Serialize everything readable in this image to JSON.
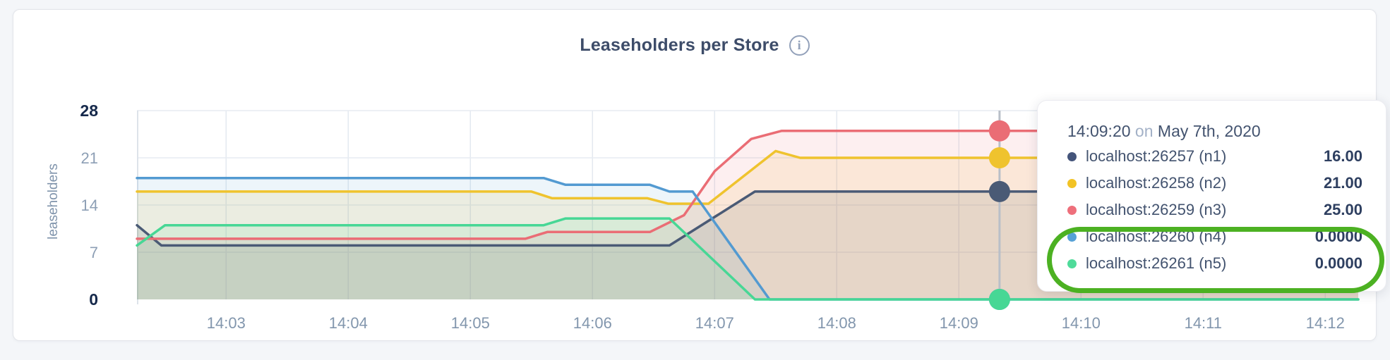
{
  "header": {
    "title": "Leaseholders per Store",
    "info_icon_glyph": "i"
  },
  "tooltip": {
    "time": "14:09:20",
    "on_word": " on ",
    "date": "May 7th, 2020",
    "rows": [
      {
        "name": "localhost:26257 (n1)",
        "value": "16.00",
        "color": "#4454722",
        "dot_color": "#44547a"
      },
      {
        "name": "localhost:26258 (n2)",
        "value": "21.00",
        "color": "#f2c325",
        "dot_color": "#f2c325"
      },
      {
        "name": "localhost:26259 (n3)",
        "value": "25.00",
        "color": "#ee6f7b",
        "dot_color": "#ee6f7b"
      },
      {
        "name": "localhost:26260 (n4)",
        "value": "0.0000",
        "color": "#56a1d6",
        "dot_color": "#56a1d6"
      },
      {
        "name": "localhost:26261 (n5)",
        "value": "0.0000",
        "color": "#4fdb9a",
        "dot_color": "#4fdb9a"
      }
    ],
    "annotation_color": "#4cb122",
    "annotation_note": "green ring highlights rows n4 and n5"
  },
  "chart_data": {
    "type": "area",
    "title": "Leaseholders per Store",
    "xlabel": "",
    "ylabel": "leaseholders",
    "x_unit": "minutes after 14:00 on May 7th, 2020",
    "x_range": [
      2.27,
      12.27
    ],
    "y_range": [
      0,
      28
    ],
    "grid": true,
    "legend_position": "tooltip",
    "x_ticks": [
      {
        "t": 3,
        "label": "14:03"
      },
      {
        "t": 4,
        "label": "14:04"
      },
      {
        "t": 5,
        "label": "14:05"
      },
      {
        "t": 6,
        "label": "14:06"
      },
      {
        "t": 7,
        "label": "14:07"
      },
      {
        "t": 8,
        "label": "14:08"
      },
      {
        "t": 9,
        "label": "14:09"
      },
      {
        "t": 10,
        "label": "14:10"
      },
      {
        "t": 11,
        "label": "14:11"
      },
      {
        "t": 12,
        "label": "14:12"
      }
    ],
    "y_ticks": [
      {
        "v": 0,
        "label": "0",
        "emph": true
      },
      {
        "v": 7,
        "label": "7",
        "emph": false
      },
      {
        "v": 14,
        "label": "14",
        "emph": false
      },
      {
        "v": 21,
        "label": "21",
        "emph": false
      },
      {
        "v": 28,
        "label": "28",
        "emph": true
      }
    ],
    "hover": {
      "time_min": 9.333,
      "time_label": "14:09:20",
      "date_label": "May 7th, 2020"
    },
    "series": [
      {
        "key": "n1",
        "name": "localhost:26257 (n1)",
        "color": "#4a5a75",
        "fill_opacity": 0.14,
        "hover_value": 16,
        "points": [
          [
            2.27,
            11
          ],
          [
            2.47,
            8
          ],
          [
            6.63,
            8
          ],
          [
            7.33,
            16
          ],
          [
            12.27,
            16
          ]
        ]
      },
      {
        "key": "n2",
        "name": "localhost:26258 (n2)",
        "color": "#efc32e",
        "fill_opacity": 0.13,
        "hover_value": 21,
        "points": [
          [
            2.27,
            16
          ],
          [
            5.5,
            16
          ],
          [
            5.67,
            15
          ],
          [
            6.45,
            15
          ],
          [
            6.62,
            14.2
          ],
          [
            6.95,
            14.2
          ],
          [
            7.5,
            22
          ],
          [
            7.7,
            21
          ],
          [
            12.27,
            21
          ]
        ]
      },
      {
        "key": "n3",
        "name": "localhost:26259 (n3)",
        "color": "#ea6d75",
        "fill_opacity": 0.11,
        "hover_value": 25,
        "points": [
          [
            2.27,
            9
          ],
          [
            5.45,
            9
          ],
          [
            5.63,
            10
          ],
          [
            6.47,
            10
          ],
          [
            6.75,
            12.5
          ],
          [
            7.0,
            19
          ],
          [
            7.3,
            23.8
          ],
          [
            7.55,
            25
          ],
          [
            12.27,
            25
          ]
        ]
      },
      {
        "key": "n4",
        "name": "localhost:26260 (n4)",
        "color": "#539ad1",
        "fill_opacity": 0.1,
        "hover_value": 0,
        "points": [
          [
            2.27,
            18
          ],
          [
            5.6,
            18
          ],
          [
            5.78,
            17
          ],
          [
            6.47,
            17
          ],
          [
            6.63,
            16
          ],
          [
            6.82,
            16
          ],
          [
            7.45,
            0
          ],
          [
            12.27,
            0
          ]
        ]
      },
      {
        "key": "n5",
        "name": "localhost:26261 (n5)",
        "color": "#47d795",
        "fill_opacity": 0.11,
        "hover_value": 0,
        "points": [
          [
            2.27,
            8
          ],
          [
            2.5,
            11
          ],
          [
            5.6,
            11
          ],
          [
            5.78,
            12
          ],
          [
            6.63,
            12
          ],
          [
            7.33,
            0
          ],
          [
            12.27,
            0
          ]
        ]
      }
    ],
    "style": {
      "grid_color_h": "#e7ecf2",
      "grid_color_v": "#e3e9f0",
      "axis_line_color": "#dde3ea",
      "hover_line_color": "#b9bfc8",
      "line_width": 3.5,
      "dot_radius": 15
    }
  }
}
